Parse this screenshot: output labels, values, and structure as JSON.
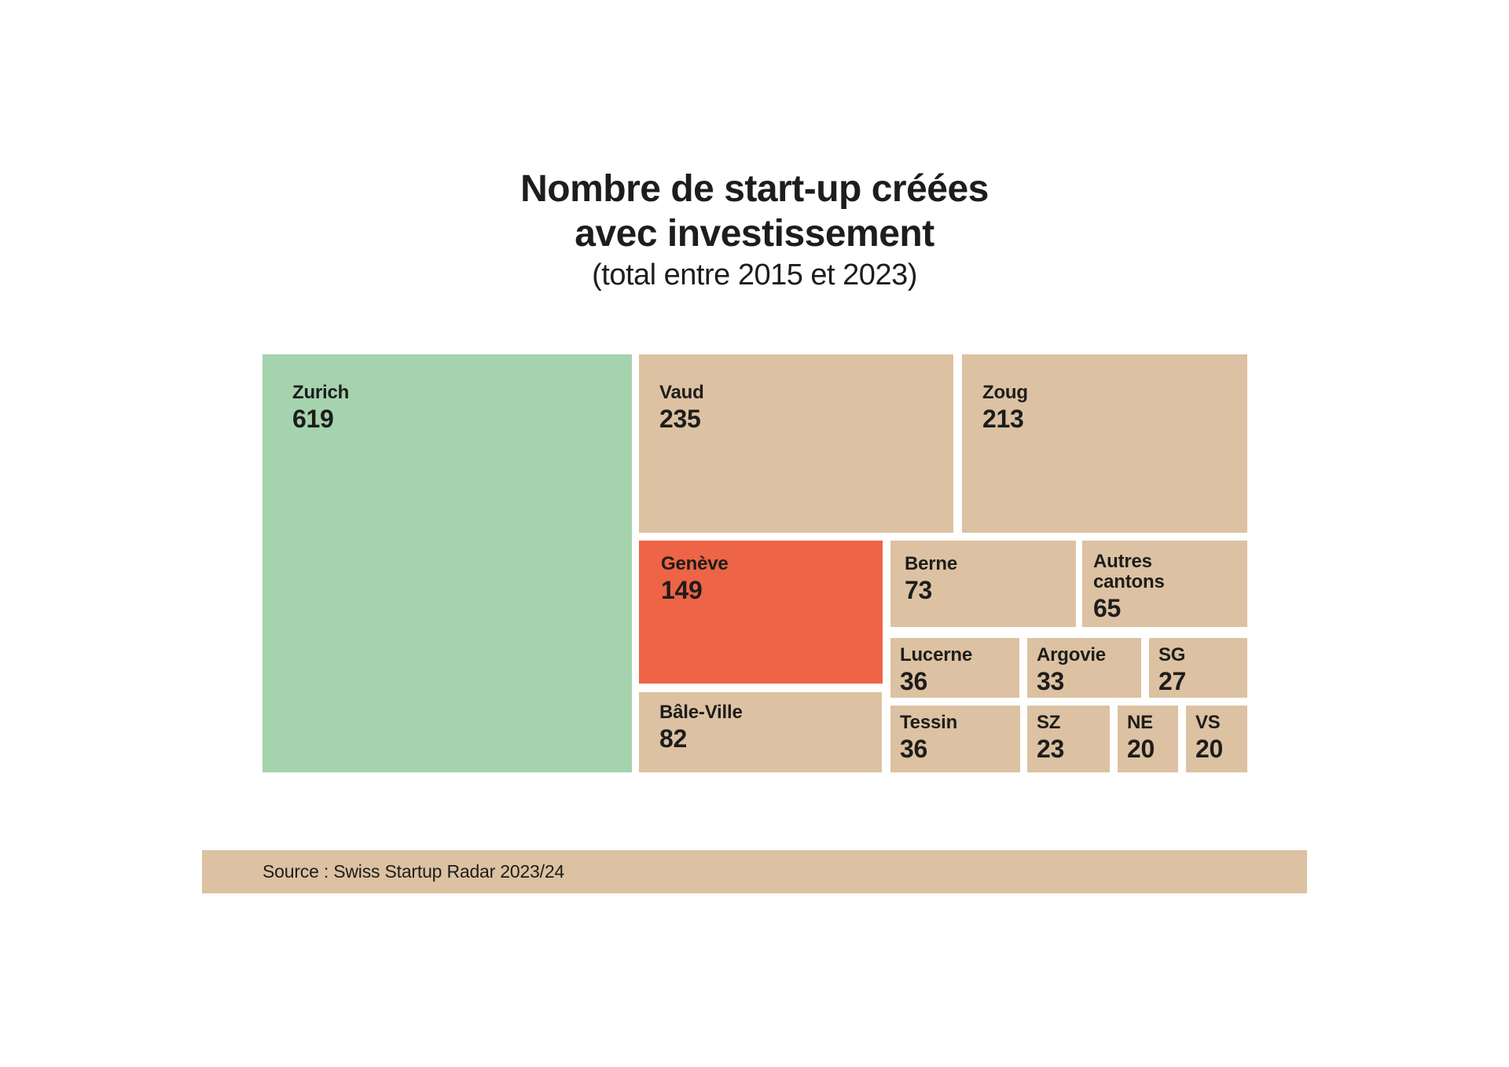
{
  "title": {
    "line1": "Nombre de start-up créées",
    "line2": "avec investissement",
    "subtitle": "(total entre 2015 et 2023)"
  },
  "source": {
    "label": "Source : Swiss Startup Radar 2023/24"
  },
  "colors": {
    "highlight_green": "#a5d3ae",
    "highlight_orange": "#ee6446",
    "tile_tan": "#dcc2a2",
    "text": "#1d1d1b",
    "background": "#ffffff"
  },
  "chart_data": {
    "type": "treemap",
    "title": "Nombre de start-up créées avec investissement",
    "subtitle": "(total entre 2015 et 2023)",
    "source": "Source : Swiss Startup Radar 2023/24",
    "legend_position": "none",
    "tiles": [
      {
        "label": "Zurich",
        "value": 619,
        "color": "#a5d3ae"
      },
      {
        "label": "Vaud",
        "value": 235,
        "color": "#dcc2a2"
      },
      {
        "label": "Zoug",
        "value": 213,
        "color": "#dcc2a2"
      },
      {
        "label": "Genève",
        "value": 149,
        "color": "#ee6446"
      },
      {
        "label": "Berne",
        "value": 73,
        "color": "#dcc2a2"
      },
      {
        "label": "Autres cantons",
        "value": 65,
        "color": "#dcc2a2"
      },
      {
        "label": "Lucerne",
        "value": 36,
        "color": "#dcc2a2"
      },
      {
        "label": "Argovie",
        "value": 33,
        "color": "#dcc2a2"
      },
      {
        "label": "SG",
        "value": 27,
        "color": "#dcc2a2"
      },
      {
        "label": "Bâle-Ville",
        "value": 82,
        "color": "#dcc2a2"
      },
      {
        "label": "Tessin",
        "value": 36,
        "color": "#dcc2a2"
      },
      {
        "label": "SZ",
        "value": 23,
        "color": "#dcc2a2"
      },
      {
        "label": "NE",
        "value": 20,
        "color": "#dcc2a2"
      },
      {
        "label": "VS",
        "value": 20,
        "color": "#dcc2a2"
      }
    ]
  }
}
